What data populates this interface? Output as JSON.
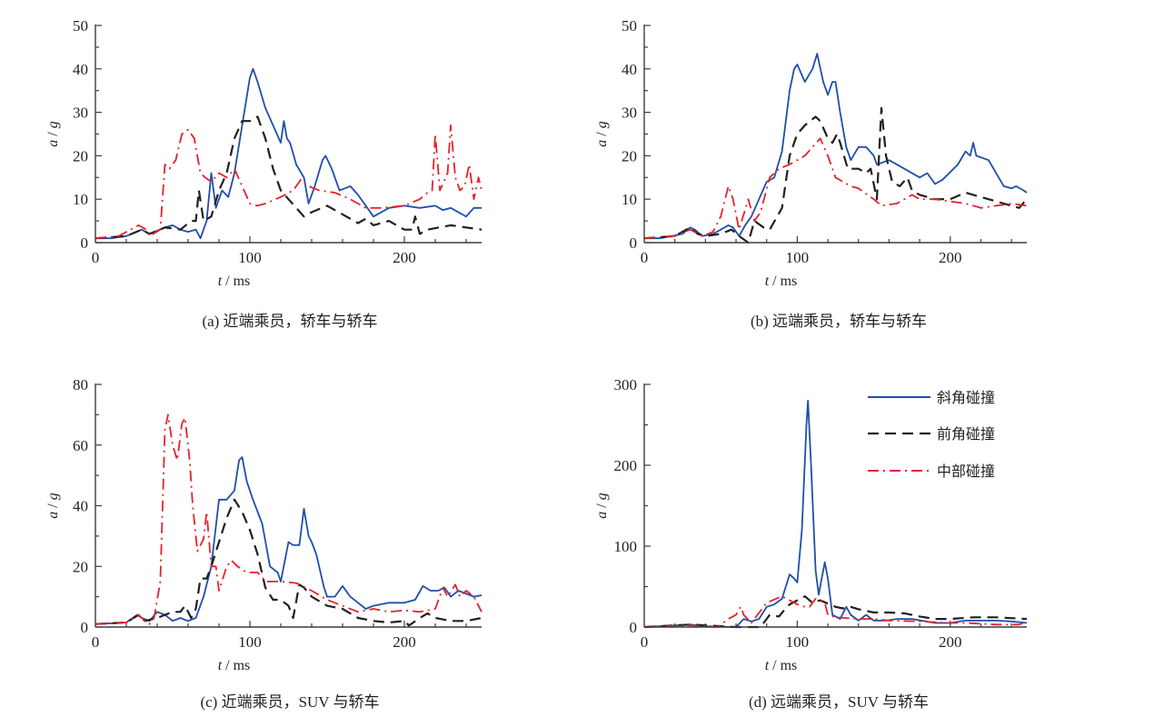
{
  "legend": {
    "series_names": [
      "斜角碰撞",
      "前角碰撞",
      "中部碰撞"
    ],
    "colors": [
      "#1f4fa8",
      "#231f20",
      "#e8202a"
    ],
    "styles": [
      "solid",
      "dashed",
      "dashdot"
    ]
  },
  "chart_data": [
    {
      "type": "line",
      "title": "(a) 近端乘员，轿车与轿车",
      "xlabel_var": "t",
      "xlabel_unit": " / ms",
      "ylabel_var_a": "a",
      "ylabel_sep": " / ",
      "ylabel_var_g": "g",
      "xlim": [
        0,
        250
      ],
      "ylim": [
        0,
        50
      ],
      "xticks": [
        0,
        100,
        200
      ],
      "xtick_labels": [
        "0",
        "100",
        "200"
      ],
      "yticks": [
        0,
        10,
        20,
        30,
        40,
        50
      ],
      "ytick_labels": [
        "0",
        "10",
        "20",
        "30",
        "40",
        "50"
      ],
      "legend": false,
      "series": [
        {
          "name": "斜角碰撞",
          "x": [
            0,
            10,
            20,
            30,
            35,
            45,
            50,
            55,
            60,
            65,
            68,
            72,
            75,
            78,
            82,
            86,
            90,
            95,
            100,
            102,
            105,
            110,
            115,
            120,
            122,
            124,
            126,
            130,
            135,
            138,
            142,
            147,
            149,
            153,
            158,
            165,
            170,
            180,
            190,
            200,
            210,
            220,
            225,
            230,
            240,
            245,
            250
          ],
          "y": [
            1,
            1,
            1.5,
            3,
            2,
            3.5,
            4,
            3,
            2.5,
            3,
            1,
            5,
            16,
            8,
            12,
            10.5,
            16,
            27,
            38,
            40,
            37,
            31,
            27,
            23,
            28,
            24,
            23,
            18,
            15,
            9,
            13,
            19,
            20,
            17,
            12,
            13,
            11,
            6,
            8,
            8.5,
            8,
            8.5,
            7.5,
            8,
            6,
            8,
            8
          ]
        },
        {
          "name": "前角碰撞",
          "x": [
            0,
            20,
            30,
            35,
            45,
            55,
            62,
            65,
            67,
            70,
            75,
            80,
            85,
            90,
            95,
            100,
            105,
            110,
            115,
            120,
            130,
            135,
            140,
            150,
            160,
            170,
            175,
            180,
            190,
            200,
            205,
            207,
            210,
            215,
            230,
            250
          ],
          "y": [
            1,
            1.5,
            3,
            2,
            3.5,
            3,
            5,
            5,
            12,
            5,
            6,
            12,
            16,
            24,
            28,
            28,
            29,
            24,
            17,
            12,
            8,
            6,
            7,
            8.5,
            6.5,
            4.5,
            5.5,
            4,
            5,
            3,
            3,
            6,
            2,
            3,
            4,
            3
          ]
        },
        {
          "name": "中部碰撞",
          "x": [
            0,
            15,
            28,
            33,
            35,
            42,
            45,
            48,
            52,
            56,
            60,
            64,
            68,
            71,
            75,
            80,
            85,
            90,
            95,
            100,
            105,
            110,
            120,
            128,
            133,
            138,
            145,
            155,
            165,
            175,
            185,
            200,
            210,
            215,
            218,
            220,
            223,
            228,
            230,
            233,
            236,
            239,
            242,
            245,
            248,
            250
          ],
          "y": [
            1,
            1.5,
            4,
            3,
            1.5,
            3,
            18,
            17,
            19,
            25,
            26,
            24,
            16,
            15,
            14,
            16,
            15,
            17,
            13,
            9,
            8.5,
            9,
            10.5,
            12,
            14.5,
            13,
            12,
            11.5,
            10,
            8,
            8,
            8.5,
            10,
            11.5,
            12,
            25,
            12,
            16,
            27,
            15,
            12,
            13,
            18,
            10,
            15,
            12
          ]
        }
      ]
    },
    {
      "type": "line",
      "title": "(b) 远端乘员，轿车与轿车",
      "xlabel_var": "t",
      "xlabel_unit": " / ms",
      "ylabel_var_a": "a",
      "ylabel_sep": " / ",
      "ylabel_var_g": "g",
      "xlim": [
        0,
        250
      ],
      "ylim": [
        0,
        50
      ],
      "xticks": [
        0,
        100,
        200
      ],
      "xtick_labels": [
        "0",
        "100",
        "200"
      ],
      "yticks": [
        0,
        10,
        20,
        30,
        40,
        50
      ],
      "ytick_labels": [
        "0",
        "10",
        "20",
        "30",
        "40",
        "50"
      ],
      "legend": false,
      "series": [
        {
          "name": "斜角碰撞",
          "x": [
            0,
            10,
            18,
            25,
            30,
            33,
            38,
            45,
            50,
            55,
            58,
            62,
            66,
            70,
            75,
            80,
            85,
            90,
            95,
            98,
            100,
            105,
            110,
            113,
            117,
            120,
            123,
            125,
            128,
            132,
            135,
            140,
            145,
            150,
            152,
            160,
            170,
            180,
            185,
            190,
            195,
            205,
            210,
            213,
            215,
            217,
            225,
            235,
            240,
            243,
            248,
            250
          ],
          "y": [
            1,
            1,
            1.5,
            2,
            3.5,
            3,
            1.5,
            2,
            3,
            4,
            3.5,
            1.5,
            4,
            6,
            10,
            14,
            15,
            21,
            35,
            40,
            41,
            37,
            40,
            43.5,
            37,
            34,
            37,
            37,
            30,
            22,
            19,
            22,
            22,
            20,
            18,
            19,
            17,
            15,
            16,
            13.5,
            14.5,
            18,
            21,
            20,
            23,
            20,
            19,
            13,
            12.5,
            13,
            12,
            11.5
          ]
        },
        {
          "name": "前角碰撞",
          "x": [
            0,
            20,
            30,
            35,
            40,
            50,
            57,
            62,
            68,
            72,
            78,
            82,
            90,
            95,
            100,
            105,
            112,
            115,
            120,
            123,
            126,
            128,
            133,
            140,
            145,
            148,
            152,
            155,
            158,
            162,
            167,
            172,
            175,
            180,
            190,
            200,
            210,
            220,
            230,
            240,
            245,
            250
          ],
          "y": [
            1,
            1.5,
            3.5,
            2,
            1.5,
            2,
            3,
            1.5,
            0,
            5,
            3.5,
            3,
            8,
            20,
            25,
            27,
            29,
            28,
            24,
            23,
            25,
            23,
            17,
            17,
            16,
            17,
            10,
            31,
            20,
            14,
            13,
            15,
            12,
            11,
            10,
            10,
            11.5,
            10.5,
            9.5,
            8.5,
            8,
            10
          ]
        },
        {
          "name": "中部碰撞",
          "x": [
            0,
            20,
            30,
            38,
            45,
            50,
            55,
            58,
            62,
            68,
            72,
            76,
            82,
            88,
            95,
            105,
            110,
            115,
            120,
            125,
            130,
            135,
            140,
            150,
            155,
            165,
            175,
            180,
            190,
            200,
            210,
            220,
            230,
            240,
            250
          ],
          "y": [
            1,
            1.5,
            3,
            1.5,
            2.5,
            6,
            13,
            10,
            3,
            10,
            5,
            7,
            15,
            17,
            18,
            20,
            22,
            24,
            20,
            15,
            14,
            13,
            12.5,
            10,
            8.5,
            9,
            11,
            10,
            10,
            9.5,
            9,
            8,
            8.5,
            9,
            8.5
          ]
        }
      ]
    },
    {
      "type": "line",
      "title": "(c) 近端乘员，SUV 与轿车",
      "xlabel_var": "t",
      "xlabel_unit": " / ms",
      "ylabel_var_a": "a",
      "ylabel_sep": " / ",
      "ylabel_var_g": "g",
      "xlim": [
        0,
        250
      ],
      "ylim": [
        0,
        80
      ],
      "xticks": [
        0,
        100,
        200
      ],
      "xtick_labels": [
        "0",
        "100",
        "200"
      ],
      "yticks": [
        0,
        20,
        40,
        60,
        80
      ],
      "ytick_labels": [
        "0",
        "20",
        "40",
        "60",
        "80"
      ],
      "legend": false,
      "series": [
        {
          "name": "斜角碰撞",
          "x": [
            0,
            20,
            27,
            30,
            35,
            40,
            45,
            50,
            55,
            60,
            65,
            70,
            75,
            80,
            85,
            90,
            93,
            95,
            98,
            102,
            108,
            113,
            118,
            120,
            125,
            128,
            132,
            135,
            138,
            140,
            143,
            148,
            150,
            155,
            160,
            165,
            175,
            180,
            190,
            200,
            207,
            212,
            217,
            222,
            226,
            230,
            235,
            245,
            250
          ],
          "y": [
            1,
            1.5,
            4,
            3,
            2,
            5,
            4,
            2,
            3,
            2,
            3,
            10,
            20,
            42,
            42,
            45,
            55,
            56,
            48,
            42,
            34,
            20,
            18,
            15,
            28,
            27,
            27,
            39,
            30,
            28,
            24,
            13,
            10,
            10,
            13.5,
            10,
            6,
            7,
            8,
            8,
            9,
            13.5,
            12,
            12,
            13,
            10,
            12,
            10,
            10.5
          ]
        },
        {
          "name": "前角碰撞",
          "x": [
            0,
            20,
            28,
            32,
            40,
            45,
            50,
            55,
            58,
            62,
            65,
            68,
            72,
            75,
            80,
            85,
            90,
            95,
            100,
            105,
            110,
            115,
            120,
            125,
            128,
            132,
            135,
            140,
            150,
            160,
            170,
            180,
            190,
            200,
            203,
            210,
            215,
            220,
            230,
            240,
            250
          ],
          "y": [
            1,
            1.5,
            4,
            2,
            3,
            4,
            5,
            5,
            7,
            3,
            6,
            16,
            16,
            20,
            28,
            36,
            42,
            38,
            32,
            24,
            13,
            9,
            9,
            7,
            3,
            14,
            13,
            10,
            7,
            6,
            3,
            2,
            1.5,
            2,
            0.5,
            3,
            4.5,
            3,
            2,
            2,
            3
          ]
        },
        {
          "name": "中部碰撞",
          "x": [
            0,
            20,
            28,
            32,
            35,
            38,
            42,
            45,
            47,
            50,
            53,
            56,
            58,
            61,
            63,
            66,
            70,
            72,
            75,
            78,
            80,
            85,
            88,
            92,
            98,
            105,
            110,
            120,
            130,
            140,
            150,
            160,
            170,
            180,
            190,
            200,
            210,
            220,
            225,
            228,
            233,
            236,
            240,
            245,
            250
          ],
          "y": [
            1,
            1.5,
            4,
            2,
            1,
            3,
            15,
            65,
            70,
            60,
            55,
            67,
            69,
            55,
            40,
            25,
            29,
            38,
            20,
            20,
            12,
            20,
            22,
            20,
            18,
            18,
            15,
            15,
            14.5,
            12,
            9,
            7,
            5,
            6,
            5,
            5.5,
            5,
            6,
            13,
            10,
            14,
            10,
            12,
            10,
            5
          ]
        }
      ]
    },
    {
      "type": "line",
      "title": "(d) 远端乘员，SUV 与轿车",
      "xlabel_var": "t",
      "xlabel_unit": " / ms",
      "ylabel_var_a": "a",
      "ylabel_sep": " / ",
      "ylabel_var_g": "g",
      "xlim": [
        0,
        250
      ],
      "ylim": [
        0,
        300
      ],
      "xticks": [
        0,
        100,
        200
      ],
      "xtick_labels": [
        "0",
        "100",
        "200"
      ],
      "yticks": [
        0,
        100,
        200,
        300
      ],
      "ytick_labels": [
        "0",
        "100",
        "200",
        "300"
      ],
      "legend": "top-right",
      "series": [
        {
          "name": "斜角碰撞",
          "x": [
            0,
            30,
            40,
            60,
            65,
            70,
            75,
            80,
            85,
            90,
            95,
            98,
            100,
            103,
            106,
            107,
            109,
            112,
            114,
            116,
            118,
            120,
            123,
            128,
            132,
            135,
            140,
            145,
            150,
            158,
            165,
            175,
            190,
            200,
            210,
            230,
            240,
            250
          ],
          "y": [
            0,
            3,
            1,
            0,
            10,
            7,
            10,
            25,
            28,
            35,
            65,
            60,
            55,
            120,
            250,
            280,
            200,
            70,
            40,
            60,
            80,
            60,
            15,
            10,
            25,
            15,
            8,
            15,
            8,
            8,
            10,
            10,
            5,
            5,
            8,
            8,
            7,
            5
          ]
        },
        {
          "name": "前角碰撞",
          "x": [
            0,
            30,
            60,
            68,
            76,
            82,
            88,
            92,
            95,
            100,
            105,
            110,
            115,
            125,
            130,
            135,
            140,
            145,
            150,
            160,
            170,
            180,
            190,
            200,
            215,
            230,
            250
          ],
          "y": [
            0,
            3,
            0,
            0,
            0,
            15,
            13,
            22,
            28,
            33,
            38,
            30,
            33,
            25,
            23,
            25,
            22,
            20,
            18,
            18,
            17,
            13,
            10,
            10,
            12,
            12,
            10
          ]
        },
        {
          "name": "中部碰撞",
          "x": [
            0,
            30,
            48,
            55,
            60,
            63,
            65,
            70,
            80,
            90,
            95,
            100,
            105,
            108,
            112,
            118,
            120,
            125,
            140,
            150,
            160,
            180,
            200,
            210,
            230,
            245,
            250
          ],
          "y": [
            0,
            2,
            0,
            10,
            15,
            25,
            15,
            5,
            30,
            38,
            33,
            28,
            25,
            25,
            35,
            30,
            15,
            12,
            10,
            10,
            8,
            7,
            5,
            5,
            3,
            3,
            7
          ]
        }
      ]
    }
  ]
}
